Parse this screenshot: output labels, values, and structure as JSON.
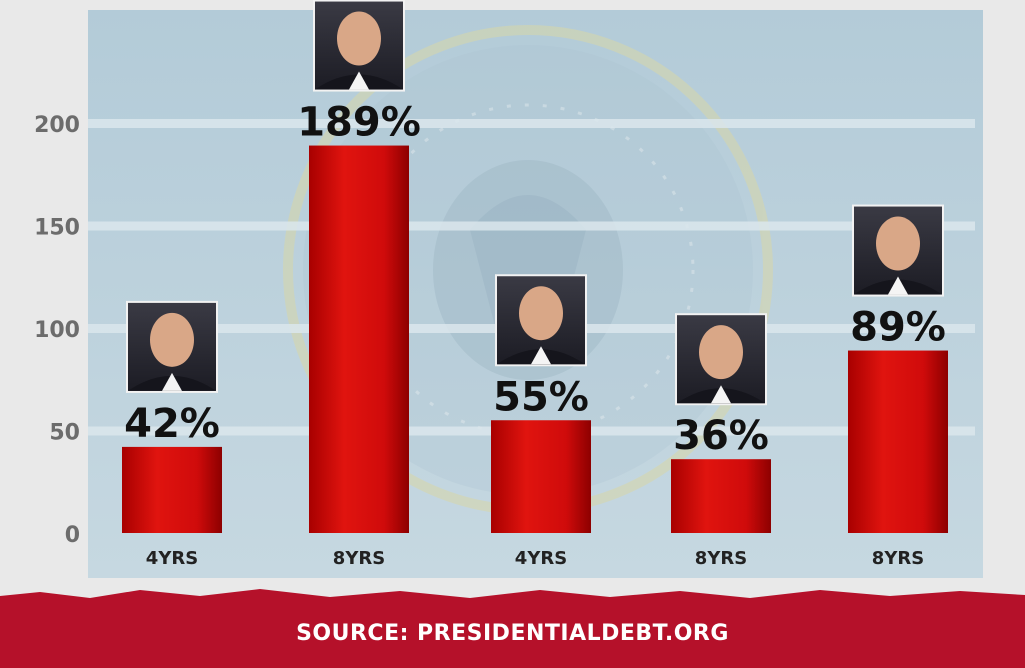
{
  "chart_data": {
    "type": "bar",
    "categories": [
      "4YRS",
      "8YRS",
      "4YRS",
      "8YRS",
      "8YRS"
    ],
    "values": [
      42,
      189,
      55,
      36,
      89
    ],
    "data_labels": [
      "42%",
      "189%",
      "55%",
      "36%",
      "89%"
    ],
    "yticks": [
      0,
      50,
      100,
      150,
      200
    ],
    "ylim": [
      0,
      200
    ],
    "grid": true,
    "colors": {
      "bar": "#cc0a0a",
      "bar_dark": "#8d0000",
      "panel": "#b7cdd8",
      "footer": "#b5112a"
    },
    "portrait_icons": [
      "portrait-photo-icon",
      "portrait-photo-icon",
      "portrait-photo-icon",
      "portrait-photo-icon",
      "portrait-photo-icon"
    ]
  },
  "footer": {
    "source": "SOURCE: PRESIDENTIALDEBT.ORG"
  }
}
